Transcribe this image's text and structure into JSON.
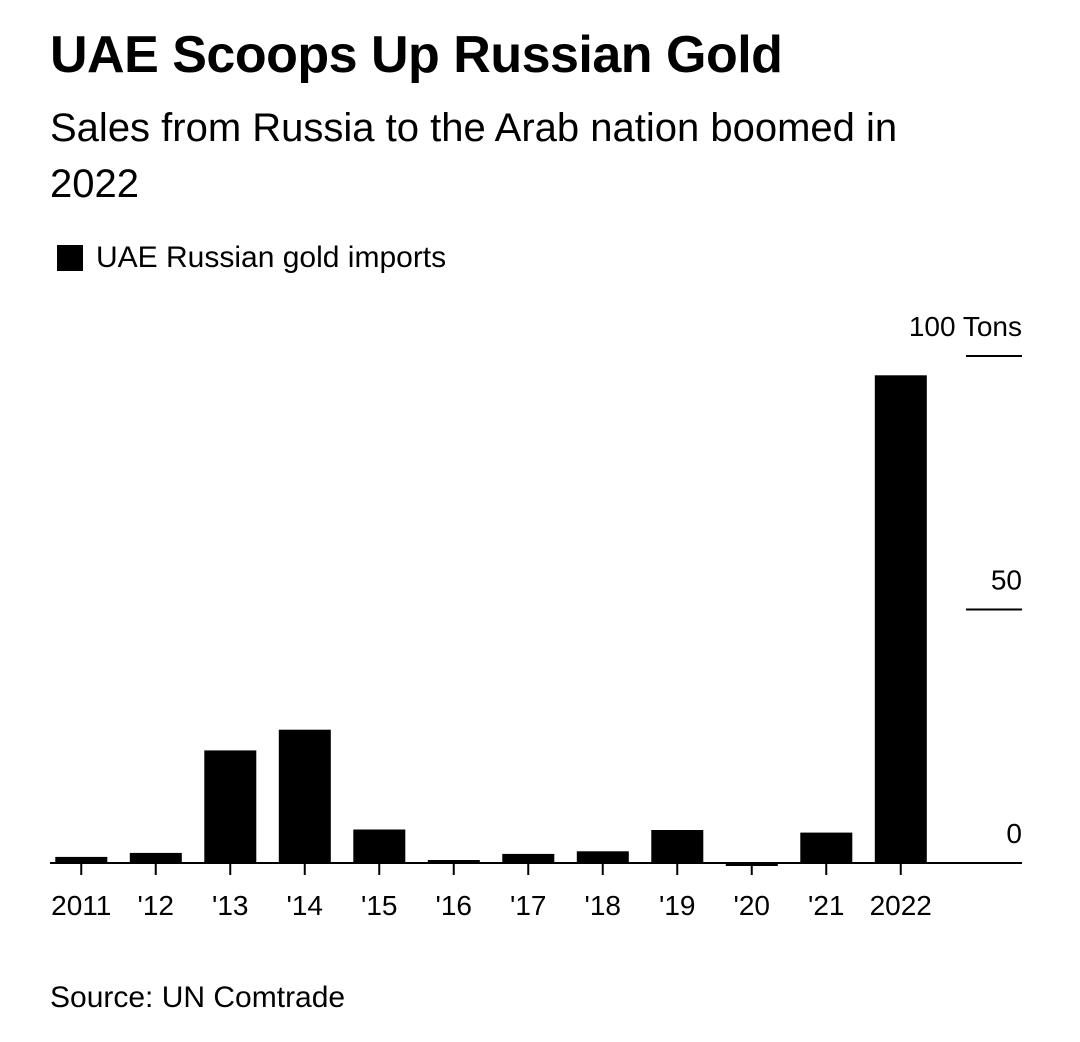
{
  "title": "UAE Scoops Up Russian Gold",
  "subtitle": "Sales from Russia to the Arab nation boomed in 2022",
  "legend": {
    "label": "UAE Russian gold imports",
    "color": "#000000"
  },
  "source": "Source: UN Comtrade",
  "chart_data": {
    "type": "bar",
    "title": "UAE Scoops Up Russian Gold",
    "subtitle": "Sales from Russia to the Arab nation boomed in 2022",
    "xlabel": "",
    "ylabel": "",
    "categories": [
      "2011",
      "'12",
      "'13",
      "'14",
      "'15",
      "'16",
      "'17",
      "'18",
      "'19",
      "'20",
      "'21",
      "2022"
    ],
    "series": [
      {
        "name": "UAE Russian gold imports",
        "color": "#000000",
        "values": [
          1.2,
          2,
          22.2,
          26.3,
          6.6,
          0.6,
          1.8,
          2.3,
          6.5,
          -0.6,
          6,
          96.2
        ]
      }
    ],
    "ylim": [
      0,
      100
    ],
    "yticks": [
      {
        "value": 100,
        "label": "100 Tons"
      },
      {
        "value": 50,
        "label": "50"
      },
      {
        "value": 0,
        "label": "0"
      }
    ],
    "yaxis_position": "right",
    "grid": false,
    "legend_position": "top-left"
  }
}
